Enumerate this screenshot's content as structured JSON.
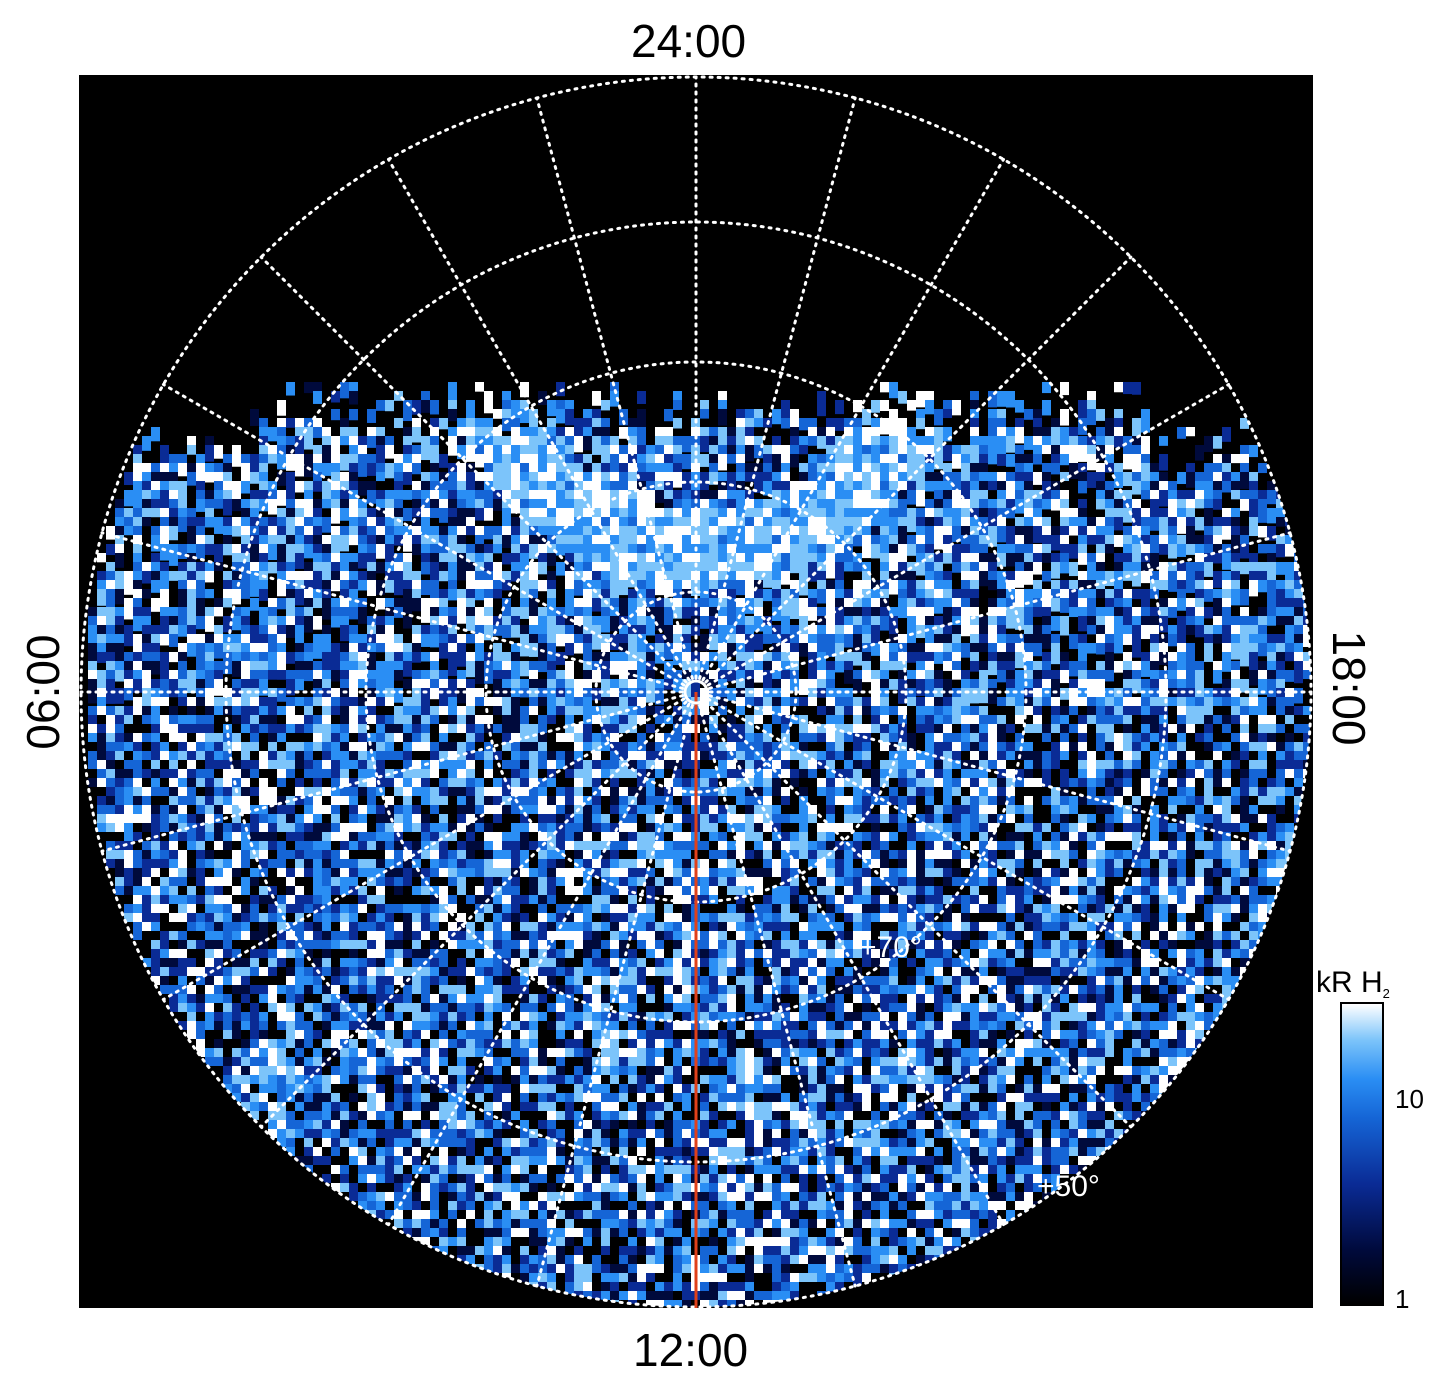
{
  "figure": {
    "labels": {
      "top": "24:00",
      "bottom": "12:00",
      "left": "06:00",
      "right": "18:00"
    },
    "grid_labels": [
      "+70°",
      "+50°"
    ],
    "colorbar": {
      "title": "kR H",
      "title_subscript": "2",
      "ticks": [
        "10",
        "1"
      ],
      "scale": "log",
      "colors": [
        "#000000",
        "#000a3c",
        "#0a2b95",
        "#1565d6",
        "#2a8ef4",
        "#7cc4fa",
        "#ffffff"
      ]
    },
    "colors": {
      "background": "#000000",
      "grid": "#ffffff",
      "meridian_line": "#e0401a"
    }
  }
}
